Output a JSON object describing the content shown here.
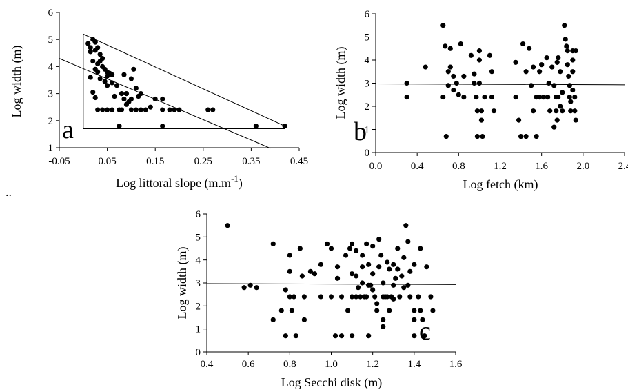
{
  "stray_mark": "..",
  "chart_data": [
    {
      "type": "scatter",
      "panel_label": "a",
      "xlabel": "Log littoral slope (m.m",
      "xlabel_sup": "-1",
      "xlabel_end": ")",
      "ylabel": "Log width (m)",
      "xlim": [
        -0.05,
        0.45
      ],
      "ylim": [
        1,
        6
      ],
      "xticks": [
        -0.05,
        0.05,
        0.15,
        0.25,
        0.35,
        0.45
      ],
      "xtick_labels": [
        "-0.05",
        "0.05",
        "0.15",
        "0.25",
        "0.35",
        "0.45"
      ],
      "yticks": [
        1,
        2,
        3,
        4,
        5,
        6
      ],
      "ytick_labels": [
        "1",
        "2",
        "3",
        "4",
        "5",
        "6"
      ],
      "lines": [
        {
          "x": [
            -0.05,
            0.39
          ],
          "y": [
            4.3,
            0.98
          ]
        },
        {
          "x": [
            0.0,
            0.42
          ],
          "y": [
            5.2,
            1.8
          ]
        },
        {
          "x": [
            0.0,
            0.0
          ],
          "y": [
            1.7,
            5.2
          ]
        },
        {
          "x": [
            0.0,
            0.42
          ],
          "y": [
            1.7,
            1.7
          ]
        }
      ],
      "points": [
        [
          0.01,
          4.85
        ],
        [
          0.02,
          5.0
        ],
        [
          0.025,
          4.9
        ],
        [
          0.03,
          4.7
        ],
        [
          0.015,
          4.55
        ],
        [
          0.035,
          4.45
        ],
        [
          0.04,
          4.3
        ],
        [
          0.02,
          4.2
        ],
        [
          0.03,
          4.1
        ],
        [
          0.04,
          4.0
        ],
        [
          0.045,
          3.9
        ],
        [
          0.05,
          3.8
        ],
        [
          0.055,
          3.75
        ],
        [
          0.06,
          3.7
        ],
        [
          0.035,
          3.55
        ],
        [
          0.045,
          3.45
        ],
        [
          0.05,
          3.3
        ],
        [
          0.025,
          3.9
        ],
        [
          0.03,
          3.8
        ],
        [
          0.015,
          3.6
        ],
        [
          0.02,
          3.05
        ],
        [
          0.025,
          2.85
        ],
        [
          0.03,
          2.4
        ],
        [
          0.04,
          2.4
        ],
        [
          0.05,
          2.4
        ],
        [
          0.06,
          2.4
        ],
        [
          0.065,
          2.9
        ],
        [
          0.07,
          3.3
        ],
        [
          0.08,
          3.0
        ],
        [
          0.085,
          3.7
        ],
        [
          0.09,
          3.0
        ],
        [
          0.1,
          2.8
        ],
        [
          0.105,
          3.9
        ],
        [
          0.11,
          3.2
        ],
        [
          0.12,
          3.0
        ],
        [
          0.085,
          2.8
        ],
        [
          0.09,
          2.6
        ],
        [
          0.1,
          2.4
        ],
        [
          0.11,
          2.4
        ],
        [
          0.12,
          2.4
        ],
        [
          0.13,
          2.4
        ],
        [
          0.14,
          2.5
        ],
        [
          0.15,
          2.8
        ],
        [
          0.165,
          2.8
        ],
        [
          0.165,
          2.4
        ],
        [
          0.18,
          2.4
        ],
        [
          0.19,
          2.4
        ],
        [
          0.2,
          2.4
        ],
        [
          0.26,
          2.4
        ],
        [
          0.27,
          2.4
        ],
        [
          0.075,
          1.8
        ],
        [
          0.165,
          1.8
        ],
        [
          0.36,
          1.8
        ],
        [
          0.42,
          1.8
        ],
        [
          0.075,
          2.4
        ],
        [
          0.08,
          2.4
        ],
        [
          0.015,
          4.7
        ],
        [
          0.025,
          4.6
        ],
        [
          0.035,
          4.2
        ],
        [
          0.05,
          3.65
        ],
        [
          0.06,
          3.4
        ],
        [
          0.1,
          3.55
        ],
        [
          0.115,
          2.9
        ],
        [
          0.095,
          2.7
        ]
      ]
    },
    {
      "type": "scatter",
      "panel_label": "b",
      "xlabel": "Log fetch (km)",
      "ylabel": "Log width (m)",
      "xlim": [
        0,
        2.4
      ],
      "ylim": [
        0,
        6
      ],
      "xticks": [
        0,
        0.4,
        0.8,
        1.2,
        1.6,
        2.0,
        2.4
      ],
      "xtick_labels": [
        "0.0",
        "0.4",
        "0.8",
        "1.2",
        "1.6",
        "2.0",
        "2.4"
      ],
      "yticks": [
        0,
        1,
        2,
        3,
        4,
        5,
        6
      ],
      "ytick_labels": [
        "0",
        "1",
        "2",
        "3",
        "4",
        "5",
        "6"
      ],
      "lines": [
        {
          "x": [
            0,
            2.4
          ],
          "y": [
            2.97,
            2.93
          ]
        }
      ],
      "points": [
        [
          0.3,
          3.0
        ],
        [
          0.3,
          2.4
        ],
        [
          0.48,
          3.7
        ],
        [
          0.65,
          5.5
        ],
        [
          0.65,
          2.4
        ],
        [
          0.67,
          4.6
        ],
        [
          0.68,
          0.7
        ],
        [
          0.7,
          3.5
        ],
        [
          0.7,
          2.9
        ],
        [
          0.72,
          4.5
        ],
        [
          0.72,
          3.7
        ],
        [
          0.75,
          3.3
        ],
        [
          0.75,
          2.7
        ],
        [
          0.78,
          3.0
        ],
        [
          0.8,
          2.5
        ],
        [
          0.82,
          4.7
        ],
        [
          0.85,
          3.3
        ],
        [
          0.85,
          2.4
        ],
        [
          0.92,
          4.2
        ],
        [
          0.95,
          3.4
        ],
        [
          0.95,
          3.0
        ],
        [
          0.97,
          2.4
        ],
        [
          0.98,
          1.8
        ],
        [
          0.98,
          0.7
        ],
        [
          1.0,
          4.4
        ],
        [
          1.0,
          4.0
        ],
        [
          1.0,
          3.0
        ],
        [
          1.02,
          1.8
        ],
        [
          1.02,
          1.4
        ],
        [
          1.03,
          0.7
        ],
        [
          1.05,
          2.4
        ],
        [
          1.1,
          4.2
        ],
        [
          1.12,
          3.5
        ],
        [
          1.12,
          2.4
        ],
        [
          1.14,
          1.8
        ],
        [
          1.35,
          3.9
        ],
        [
          1.35,
          2.4
        ],
        [
          1.38,
          1.4
        ],
        [
          1.4,
          0.7
        ],
        [
          1.42,
          4.7
        ],
        [
          1.45,
          3.5
        ],
        [
          1.45,
          0.7
        ],
        [
          1.48,
          4.5
        ],
        [
          1.5,
          2.9
        ],
        [
          1.52,
          3.7
        ],
        [
          1.52,
          1.8
        ],
        [
          1.55,
          2.4
        ],
        [
          1.55,
          0.7
        ],
        [
          1.58,
          3.5
        ],
        [
          1.6,
          3.8
        ],
        [
          1.62,
          2.4
        ],
        [
          1.65,
          4.1
        ],
        [
          1.67,
          3.0
        ],
        [
          1.68,
          1.8
        ],
        [
          1.7,
          3.7
        ],
        [
          1.72,
          2.9
        ],
        [
          1.74,
          2.4
        ],
        [
          1.75,
          1.4
        ],
        [
          1.75,
          3.9
        ],
        [
          1.76,
          4.1
        ],
        [
          1.78,
          3.5
        ],
        [
          1.78,
          2.0
        ],
        [
          1.8,
          2.6
        ],
        [
          1.8,
          1.8
        ],
        [
          1.82,
          5.5
        ],
        [
          1.83,
          4.9
        ],
        [
          1.84,
          4.6
        ],
        [
          1.85,
          4.4
        ],
        [
          1.85,
          3.8
        ],
        [
          1.86,
          3.3
        ],
        [
          1.87,
          2.9
        ],
        [
          1.87,
          2.4
        ],
        [
          1.88,
          2.2
        ],
        [
          1.88,
          1.8
        ],
        [
          1.9,
          4.4
        ],
        [
          1.9,
          4.0
        ],
        [
          1.9,
          3.5
        ],
        [
          1.9,
          2.7
        ],
        [
          1.92,
          2.4
        ],
        [
          1.92,
          1.8
        ],
        [
          1.93,
          1.4
        ],
        [
          1.93,
          4.4
        ],
        [
          1.72,
          1.1
        ],
        [
          1.74,
          1.8
        ],
        [
          1.76,
          2.4
        ],
        [
          1.66,
          2.4
        ],
        [
          1.58,
          2.4
        ]
      ]
    },
    {
      "type": "scatter",
      "panel_label": "c",
      "xlabel": "Log Secchi  disk (m)",
      "ylabel": "Log width (m)",
      "xlim": [
        0.4,
        1.6
      ],
      "ylim": [
        0,
        6
      ],
      "xticks": [
        0.4,
        0.6,
        0.8,
        1.0,
        1.2,
        1.4,
        1.6
      ],
      "xtick_labels": [
        "0.4",
        "0.6",
        "0.8",
        "1.0",
        "1.2",
        "1.4",
        "1.6"
      ],
      "yticks": [
        0,
        1,
        2,
        3,
        4,
        5,
        6
      ],
      "ytick_labels": [
        "0",
        "1",
        "2",
        "3",
        "4",
        "5",
        "6"
      ],
      "lines": [
        {
          "x": [
            0.4,
            1.6
          ],
          "y": [
            2.97,
            2.93
          ]
        }
      ],
      "points": [
        [
          0.5,
          5.5
        ],
        [
          0.58,
          2.8
        ],
        [
          0.61,
          2.9
        ],
        [
          0.64,
          2.8
        ],
        [
          0.72,
          4.7
        ],
        [
          0.72,
          1.4
        ],
        [
          0.76,
          1.8
        ],
        [
          0.78,
          2.7
        ],
        [
          0.78,
          0.7
        ],
        [
          0.8,
          4.2
        ],
        [
          0.8,
          3.5
        ],
        [
          0.8,
          2.4
        ],
        [
          0.81,
          1.8
        ],
        [
          0.82,
          2.4
        ],
        [
          0.83,
          0.7
        ],
        [
          0.85,
          4.5
        ],
        [
          0.86,
          3.3
        ],
        [
          0.87,
          2.4
        ],
        [
          0.87,
          1.4
        ],
        [
          0.9,
          3.5
        ],
        [
          0.92,
          3.4
        ],
        [
          0.95,
          2.4
        ],
        [
          0.95,
          3.8
        ],
        [
          0.98,
          4.7
        ],
        [
          1.0,
          4.5
        ],
        [
          1.0,
          2.4
        ],
        [
          1.02,
          0.7
        ],
        [
          1.03,
          3.7
        ],
        [
          1.03,
          3.2
        ],
        [
          1.05,
          2.4
        ],
        [
          1.05,
          0.7
        ],
        [
          1.07,
          4.2
        ],
        [
          1.08,
          1.8
        ],
        [
          1.09,
          4.5
        ],
        [
          1.1,
          4.7
        ],
        [
          1.1,
          3.4
        ],
        [
          1.1,
          2.4
        ],
        [
          1.1,
          0.7
        ],
        [
          1.12,
          4.4
        ],
        [
          1.12,
          3.3
        ],
        [
          1.13,
          2.8
        ],
        [
          1.14,
          2.4
        ],
        [
          1.15,
          4.2
        ],
        [
          1.15,
          3.7
        ],
        [
          1.15,
          3.0
        ],
        [
          1.17,
          4.7
        ],
        [
          1.17,
          2.4
        ],
        [
          1.18,
          3.8
        ],
        [
          1.18,
          2.9
        ],
        [
          1.18,
          0.7
        ],
        [
          1.2,
          4.6
        ],
        [
          1.2,
          3.4
        ],
        [
          1.2,
          2.7
        ],
        [
          1.21,
          2.4
        ],
        [
          1.22,
          2.1
        ],
        [
          1.22,
          1.8
        ],
        [
          1.23,
          4.9
        ],
        [
          1.23,
          3.7
        ],
        [
          1.24,
          4.2
        ],
        [
          1.25,
          3.0
        ],
        [
          1.25,
          2.4
        ],
        [
          1.25,
          1.4
        ],
        [
          1.25,
          1.1
        ],
        [
          1.27,
          3.9
        ],
        [
          1.27,
          2.4
        ],
        [
          1.28,
          3.6
        ],
        [
          1.28,
          1.8
        ],
        [
          1.3,
          3.8
        ],
        [
          1.3,
          2.9
        ],
        [
          1.3,
          2.3
        ],
        [
          1.32,
          4.5
        ],
        [
          1.32,
          3.6
        ],
        [
          1.33,
          2.4
        ],
        [
          1.34,
          3.3
        ],
        [
          1.35,
          4.1
        ],
        [
          1.35,
          2.8
        ],
        [
          1.36,
          5.5
        ],
        [
          1.37,
          4.8
        ],
        [
          1.37,
          2.9
        ],
        [
          1.38,
          3.5
        ],
        [
          1.38,
          2.4
        ],
        [
          1.4,
          3.8
        ],
        [
          1.4,
          1.8
        ],
        [
          1.4,
          1.4
        ],
        [
          1.4,
          0.7
        ],
        [
          1.42,
          2.4
        ],
        [
          1.43,
          4.5
        ],
        [
          1.43,
          1.8
        ],
        [
          1.44,
          1.4
        ],
        [
          1.45,
          0.7
        ],
        [
          1.46,
          3.7
        ],
        [
          1.48,
          2.4
        ],
        [
          1.49,
          1.8
        ],
        [
          1.12,
          2.4
        ],
        [
          1.16,
          2.4
        ],
        [
          1.19,
          2.9
        ],
        [
          1.26,
          2.4
        ],
        [
          1.29,
          2.4
        ],
        [
          1.31,
          3.2
        ]
      ]
    }
  ]
}
